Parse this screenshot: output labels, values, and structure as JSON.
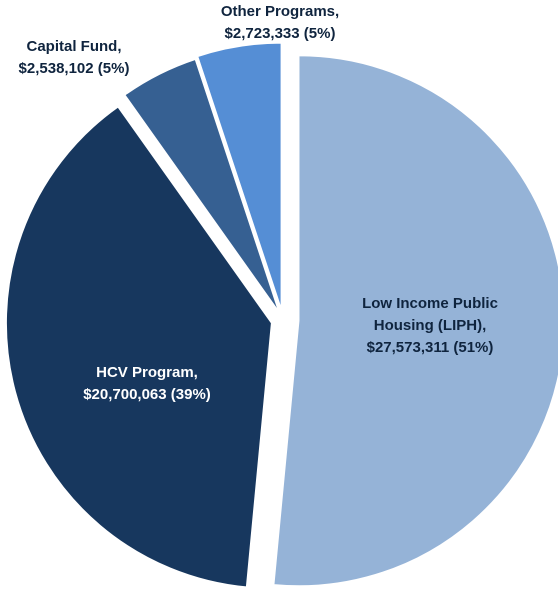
{
  "chart_data": {
    "type": "pie",
    "title": "",
    "slices": [
      {
        "name": "Low Income Public Housing (LIPH)",
        "value": 27573311,
        "percent": 51,
        "color": "#95B3D7",
        "label_lines": [
          "Low Income Public",
          "Housing  (LIPH),",
          "$27,573,311 (51%)"
        ]
      },
      {
        "name": "HCV Program",
        "value": 20700063,
        "percent": 39,
        "color": "#17375E",
        "label_lines": [
          "HCV Program,",
          "$20,700,063  (39%)"
        ]
      },
      {
        "name": "Capital Fund",
        "value": 2538102,
        "percent": 5,
        "color": "#366092",
        "label_lines": [
          "Capital  Fund,",
          "$2,538,102  (5%)"
        ]
      },
      {
        "name": "Other Programs",
        "value": 2723333,
        "percent": 5,
        "color": "#558ED5",
        "label_lines": [
          "Other Programs,",
          "$2,723,333  (5%)"
        ]
      }
    ],
    "label_colors": {
      "inside": "#FFFFFF",
      "inside_dark": "#0F243E",
      "outside": "#0F243E"
    }
  }
}
